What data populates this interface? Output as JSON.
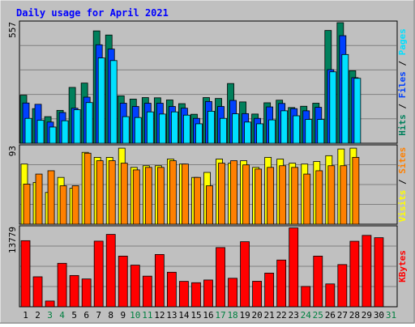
{
  "chart_data": {
    "title": "Daily usage for April 2021",
    "type": "bar",
    "days": [
      "1",
      "2",
      "3",
      "4",
      "5",
      "6",
      "7",
      "8",
      "9",
      "10",
      "11",
      "12",
      "13",
      "14",
      "15",
      "16",
      "17",
      "18",
      "19",
      "20",
      "21",
      "22",
      "23",
      "24",
      "25",
      "26",
      "27",
      "28",
      "29",
      "30",
      "31"
    ],
    "weekend_days": [
      "3",
      "4",
      "10",
      "11",
      "17",
      "18",
      "24",
      "25",
      "31"
    ],
    "colors": {
      "background": "#C0C0C0",
      "plot_bg": "#C0C0C0",
      "title": "#0000FF",
      "weekday_label": "#000000",
      "weekend_label": "#008040",
      "hits": "#00805C",
      "files": "#0040FF",
      "pages": "#00E0FF",
      "visits": "#FFFF00",
      "sites": "#FF8000",
      "kbytes": "#FF0000"
    },
    "panel_hits": {
      "max_label": "557",
      "ymax": 557,
      "legend": [
        {
          "text": "Hits",
          "color": "#00805C"
        },
        {
          "text": "Files",
          "color": "#0040FF"
        },
        {
          "text": "Pages",
          "color": "#00E0FF"
        }
      ],
      "series": [
        {
          "name": "Hits",
          "values": [
            222,
            160,
            123,
            152,
            258,
            278,
            519,
            500,
            219,
            204,
            211,
            210,
            200,
            183,
            134,
            211,
            207,
            276,
            191,
            135,
            187,
            199,
            165,
            171,
            185,
            521,
            557,
            335,
            0,
            0,
            0
          ]
        },
        {
          "name": "Files",
          "values": [
            186,
            180,
            98,
            142,
            162,
            213,
            455,
            435,
            185,
            170,
            185,
            185,
            170,
            162,
            115,
            193,
            170,
            198,
            137,
            115,
            168,
            184,
            160,
            150,
            166,
            340,
            497,
            303,
            0,
            0,
            0
          ]
        },
        {
          "name": "Pages",
          "values": [
            115,
            106,
            75,
            104,
            155,
            188,
            394,
            382,
            123,
            119,
            145,
            135,
            145,
            130,
            90,
            148,
            115,
            136,
            98,
            90,
            108,
            150,
            127,
            110,
            110,
            330,
            410,
            300,
            0,
            0,
            0
          ]
        }
      ]
    },
    "panel_visits": {
      "max_label": "93",
      "ymax": 93,
      "legend": [
        {
          "text": "Visits",
          "color": "#FFFF00"
        },
        {
          "text": "Sites",
          "color": "#FF8000"
        }
      ],
      "series": [
        {
          "name": "Visits",
          "values": [
            72,
            50,
            38,
            56,
            43,
            86,
            80,
            80,
            91,
            68,
            70,
            70,
            78,
            72,
            56,
            62,
            78,
            73,
            76,
            68,
            80,
            78,
            73,
            72,
            75,
            82,
            90,
            91,
            0,
            0,
            0
          ]
        },
        {
          "name": "Sites",
          "values": [
            48,
            60,
            64,
            46,
            46,
            85,
            76,
            76,
            73,
            65,
            68,
            68,
            76,
            72,
            56,
            46,
            73,
            76,
            71,
            66,
            68,
            70,
            68,
            60,
            64,
            70,
            70,
            80,
            0,
            0,
            0
          ]
        }
      ]
    },
    "panel_kbytes": {
      "max_label": "13779",
      "ymax": 13779,
      "legend": [
        {
          "text": "KBytes",
          "color": "#FF0000"
        }
      ],
      "series": [
        {
          "name": "KBytes",
          "values": [
            11480,
            5210,
            1000,
            7550,
            5430,
            4830,
            11400,
            12570,
            8800,
            7230,
            5320,
            9080,
            6000,
            4410,
            4180,
            4650,
            10280,
            4950,
            11300,
            4430,
            5850,
            8120,
            13700,
            3530,
            8800,
            3970,
            7330,
            11380,
            12400,
            12000,
            0
          ]
        }
      ]
    }
  }
}
